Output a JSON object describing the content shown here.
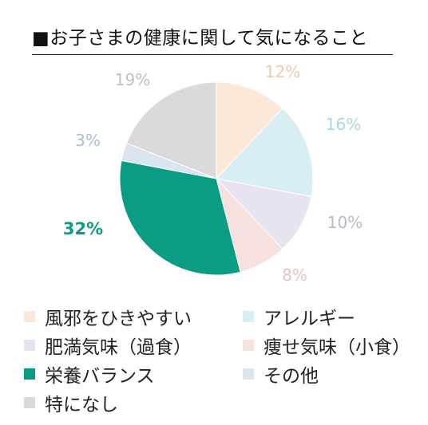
{
  "title": "■お子さまの健康に関して気になること",
  "chart_data": {
    "type": "pie",
    "title": "■お子さまの健康に関して気になること",
    "categories": [
      "風邪をひきやすい",
      "アレルギー",
      "肥満気味（過食）",
      "痩せ気味（小食）",
      "栄養バランス",
      "その他",
      "特になし"
    ],
    "values": [
      12,
      16,
      10,
      8,
      32,
      3,
      19
    ],
    "value_labels": [
      "12%",
      "16%",
      "10%",
      "8%",
      "32%",
      "3%",
      "19%"
    ],
    "colors": [
      "#fde7d8",
      "#d9eef3",
      "#e6e4ef",
      "#f6e1df",
      "#0b9d84",
      "#dbe5f1",
      "#dadada"
    ],
    "label_colors": [
      "#efc9a8",
      "#a8d8e5",
      "#b9b9cc",
      "#e7c2bc",
      "#0b9d84",
      "#a9bdd8",
      "#c0c0c0"
    ],
    "highlighted": "栄養バランス",
    "legend_position": "bottom",
    "start_angle_deg": 0,
    "direction": "clockwise"
  }
}
